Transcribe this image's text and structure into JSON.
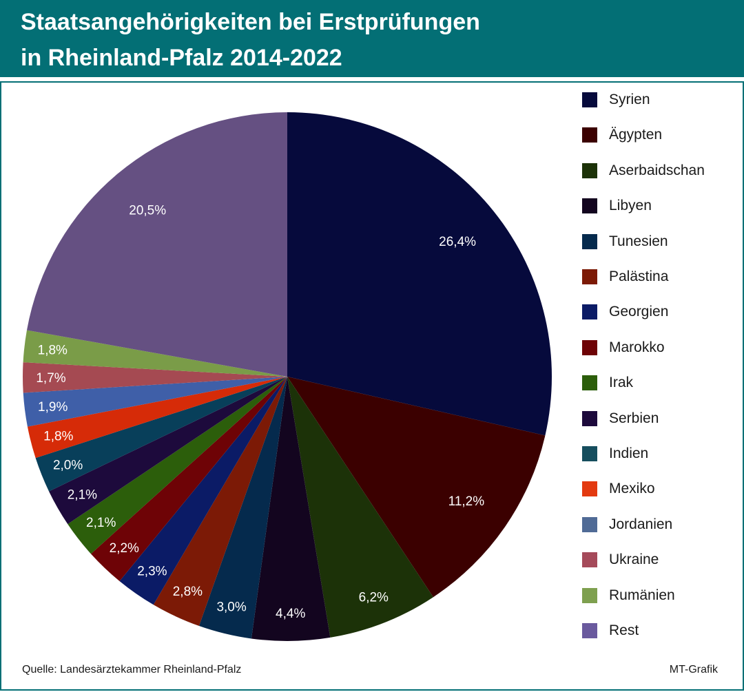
{
  "header": {
    "title_line1": "Staatsangehörigkeiten bei Erstprüfungen",
    "title_line2": "in Rheinland-Pfalz 2014-2022"
  },
  "chart_data": {
    "type": "pie",
    "title": "Staatsangehörigkeiten bei Erstprüfungen in Rheinland-Pfalz 2014-2022",
    "legend_position": "right",
    "categories": [
      "Syrien",
      "Ägypten",
      "Aserbaidschan",
      "Libyen",
      "Tunesien",
      "Palästina",
      "Georgien",
      "Marokko",
      "Irak",
      "Serbien",
      "Indien",
      "Mexiko",
      "Jordanien",
      "Ukraine",
      "Rumänien",
      "Rest"
    ],
    "values": [
      26.4,
      11.2,
      6.2,
      4.4,
      3.0,
      2.8,
      2.3,
      2.2,
      2.1,
      2.1,
      2.0,
      1.8,
      1.9,
      1.7,
      1.8,
      20.5
    ],
    "value_labels": [
      "26,4%",
      "11,2%",
      "6,2%",
      "4,4%",
      "3,0%",
      "2,8%",
      "2,3%",
      "2,2%",
      "2,1%",
      "2,1%",
      "2,0%",
      "1,8%",
      "1,9%",
      "1,7%",
      "1,8%",
      "20,5%"
    ],
    "colors": [
      "#060a3c",
      "#3b0000",
      "#1c3208",
      "#13051f",
      "#052a4d",
      "#7c1a06",
      "#0b1b66",
      "#6e0306",
      "#2c5e0b",
      "#1d0a3c",
      "#083f5a",
      "#d62b08",
      "#3f5fa8",
      "#a54a52",
      "#7a9c48",
      "#655082"
    ],
    "legend_colors": [
      "#060a3c",
      "#3b0000",
      "#1c3208",
      "#13051f",
      "#052a4d",
      "#7c1a06",
      "#0b1b66",
      "#6e0306",
      "#2c5e0b",
      "#1d0a3c",
      "#164e5e",
      "#e33a10",
      "#506b96",
      "#a54a5a",
      "#7ea04f",
      "#6a5a9e"
    ]
  },
  "footer": {
    "source": "Quelle: Landesärztekammer Rheinland-Pfalz",
    "credit": "MT-Grafik"
  }
}
